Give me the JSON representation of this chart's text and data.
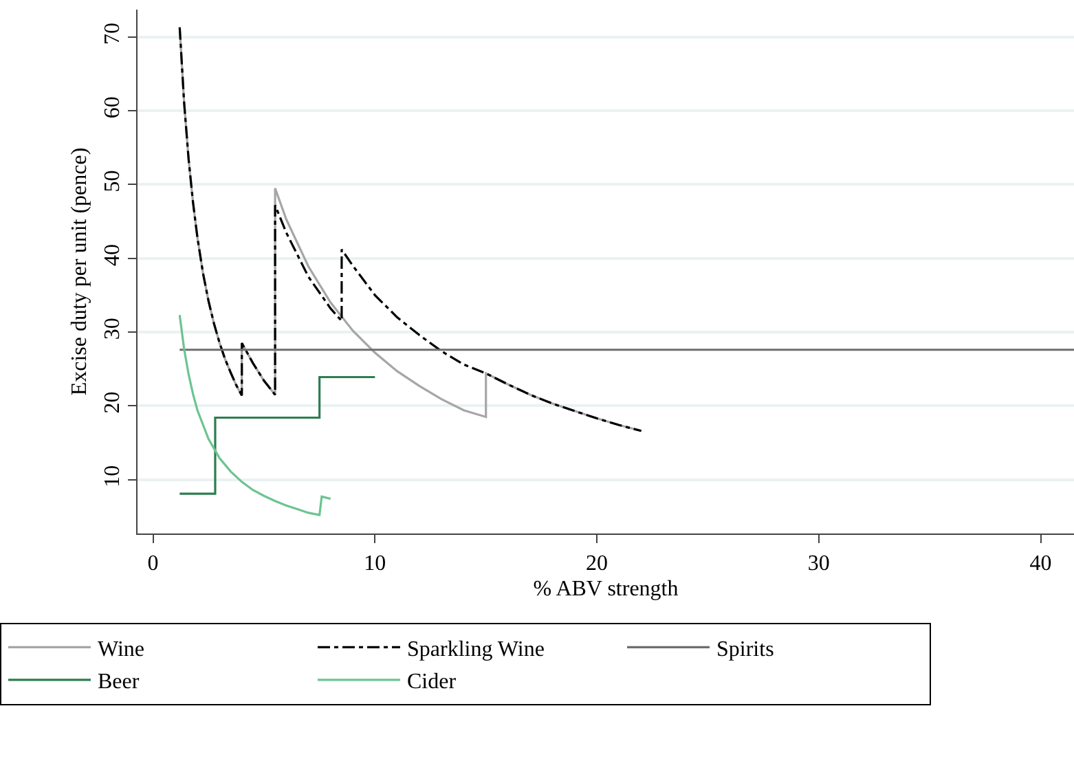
{
  "chart_data": {
    "type": "line",
    "xlabel": "% ABV strength",
    "ylabel": "Excise duty per unit (pence)",
    "xlim": [
      -0.7,
      41.5
    ],
    "xticks": [
      0,
      10,
      20,
      30,
      40
    ],
    "ylim": [
      2.7,
      73.7
    ],
    "yticks": [
      10,
      20,
      30,
      40,
      50,
      60,
      70
    ],
    "grid": "y",
    "legend": "bottom",
    "marker": "none",
    "series": [
      {
        "name": "Wine",
        "color": "#a6a6a6",
        "line_style": "solid",
        "x": [
          1.2,
          1.4,
          1.6,
          1.8,
          2,
          2.25,
          2.5,
          2.75,
          3,
          3.25,
          3.5,
          3.75,
          4,
          4,
          4.5,
          5,
          5.5,
          5.5,
          6,
          7,
          8,
          9,
          10,
          11,
          12,
          13,
          14,
          15,
          15,
          16,
          17,
          18,
          19,
          20,
          21,
          22
        ],
        "values": [
          71.3,
          61.1,
          53.5,
          47.6,
          42.8,
          38.0,
          34.2,
          31.1,
          28.5,
          26.3,
          24.5,
          22.8,
          21.4,
          28.5,
          25.8,
          23.4,
          21.5,
          49.5,
          45.3,
          38.9,
          34.0,
          30.2,
          27.2,
          24.7,
          22.7,
          20.9,
          19.4,
          18.5,
          24.4,
          22.9,
          21.5,
          20.3,
          19.3,
          18.3,
          17.4,
          16.6
        ]
      },
      {
        "name": "Sparkling Wine",
        "color": "#000000",
        "line_style": "dashdot",
        "x": [
          1.2,
          1.4,
          1.6,
          1.8,
          2,
          2.25,
          2.5,
          2.75,
          3,
          3.25,
          3.5,
          3.75,
          4,
          4,
          4.5,
          5,
          5.5,
          5.5,
          6,
          7,
          8,
          8.5,
          8.5,
          9,
          10,
          11,
          12,
          13,
          14,
          15,
          16,
          17,
          18,
          19,
          20,
          21,
          22
        ],
        "values": [
          71.3,
          61.1,
          53.5,
          47.6,
          42.8,
          38.0,
          34.2,
          31.1,
          28.5,
          26.3,
          24.5,
          22.8,
          21.4,
          28.5,
          25.8,
          23.4,
          21.5,
          47.2,
          43.5,
          37.5,
          33.2,
          31.5,
          41.2,
          39.0,
          35.0,
          32.0,
          29.6,
          27.4,
          25.6,
          24.4,
          22.9,
          21.5,
          20.3,
          19.3,
          18.3,
          17.4,
          16.6
        ]
      },
      {
        "name": "Spirits",
        "color": "#6e6e6e",
        "line_style": "solid",
        "x": [
          1.2,
          41.5
        ],
        "values": [
          27.6,
          27.6
        ]
      },
      {
        "name": "Beer",
        "color": "#2e7d50",
        "line_style": "solid",
        "x": [
          1.2,
          2.8,
          2.8,
          7.5,
          7.5,
          10
        ],
        "values": [
          8.1,
          8.1,
          18.4,
          18.4,
          23.9,
          23.9
        ]
      },
      {
        "name": "Cider",
        "color": "#6cc491",
        "line_style": "solid",
        "x": [
          1.2,
          1.4,
          1.6,
          1.8,
          2,
          2.5,
          3,
          3.5,
          4,
          4.5,
          5,
          5.5,
          6,
          6.5,
          7,
          7.5,
          7.6,
          8
        ],
        "values": [
          32.3,
          27.7,
          24.3,
          21.6,
          19.4,
          15.5,
          12.9,
          11.1,
          9.7,
          8.6,
          7.8,
          7.1,
          6.5,
          6.0,
          5.5,
          5.2,
          7.7,
          7.4
        ]
      }
    ]
  }
}
